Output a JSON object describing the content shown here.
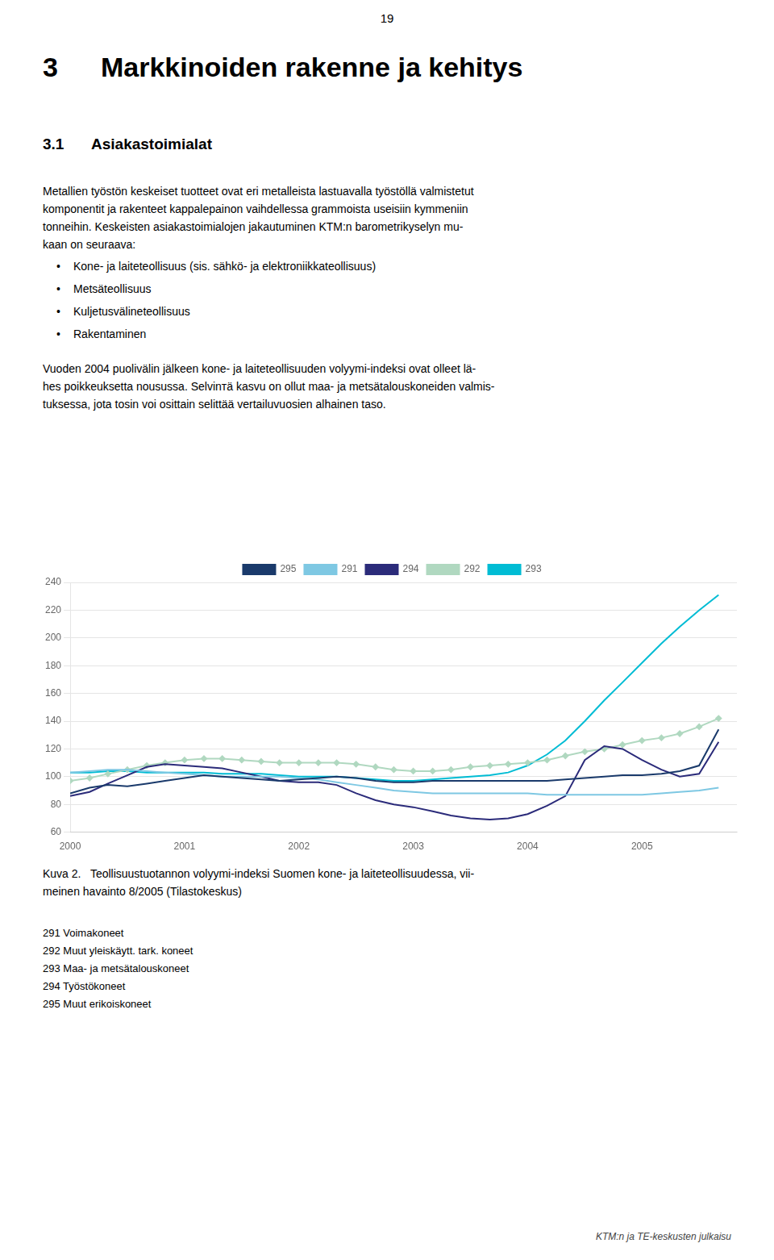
{
  "page_number": "19",
  "section_title_num": "3",
  "section_title_text": "Markkinoiden rakenne ja kehitys",
  "subsection_num": "3.1",
  "subsection_text": "Asiakastoimialat",
  "body1_lines": [
    "Metallien työstön keskeiset tuotteet ovat eri metalleista lastuavalla työstöllä valmistetut",
    "komponentit ja rakenteet kappalepainon vaihdellessa grammoista useisiin kymmeniin",
    "tonneihin. Keskeisten asiakastoimialojen jakautuminen KTM:n barometrikyselyn mu-",
    "kaan on seuraava:"
  ],
  "bullet_symbol": "•",
  "bullet_points": [
    "Kone- ja laiteteollisuus (sis. sähkö- ja elektroniikkateollisuus)",
    "Metsäteollisuus",
    "Kuljetusvälineteollisuus",
    "Rakentaminen"
  ],
  "body2_lines": [
    "Vuoden 2004 puolivälin jälkeen kone- ja laiteteollisuuden volyymi-indeksi ovat olleet lä-",
    "hes poikkeuksetta nousussa. Selvinтä kasvu on ollut maa- ja metsätalouskoneiden valmis-",
    "tuksessa, jota tosin voi osittain selittää vertailuvuosien alhainen taso."
  ],
  "caption_lines": [
    "Kuva 2.   Teollisuustuotannon volyymi-indeksi Suomen kone- ja laiteteollisuudessa, vii-",
    "meinen havainto 8/2005 (Tilastokeskus)"
  ],
  "footnotes": [
    "291 Voimakoneet",
    "292 Muut yleiskäytt. tark. koneet",
    "293 Maa- ja metsätalouskoneet",
    "294 Työstökoneet",
    "295 Muut erikoiskoneet"
  ],
  "footer_right": "KTM:n ja TE-keskusten julkaisu",
  "chart_data": {
    "type": "line",
    "x": [
      2000.0,
      2000.17,
      2000.33,
      2000.5,
      2000.67,
      2000.83,
      2001.0,
      2001.17,
      2001.33,
      2001.5,
      2001.67,
      2001.83,
      2002.0,
      2002.17,
      2002.33,
      2002.5,
      2002.67,
      2002.83,
      2003.0,
      2003.17,
      2003.33,
      2003.5,
      2003.67,
      2003.83,
      2004.0,
      2004.17,
      2004.33,
      2004.5,
      2004.67,
      2004.83,
      2005.0,
      2005.17,
      2005.33,
      2005.5,
      2005.67
    ],
    "xlim": [
      2000,
      2005.83
    ],
    "xticks": [
      2000,
      2001,
      2002,
      2003,
      2004,
      2005
    ],
    "ylim": [
      60,
      240
    ],
    "yticks": [
      60,
      80,
      100,
      120,
      140,
      160,
      180,
      200,
      220,
      240
    ],
    "grid": "y",
    "legend": "top",
    "series": [
      {
        "name": "295",
        "color": "#1a3a6b",
        "values": [
          88,
          92,
          94,
          93,
          95,
          97,
          99,
          101,
          100,
          99,
          98,
          97,
          98,
          99,
          100,
          99,
          97,
          96,
          96,
          97,
          97,
          97,
          97,
          97,
          97,
          97,
          98,
          99,
          100,
          101,
          101,
          102,
          104,
          108,
          134
        ]
      },
      {
        "name": "291",
        "color": "#7ec8e3",
        "values": [
          103,
          104,
          105,
          105,
          104,
          103,
          102,
          101,
          100,
          100,
          100,
          100,
          99,
          98,
          96,
          94,
          92,
          90,
          89,
          88,
          88,
          88,
          88,
          88,
          88,
          87,
          87,
          87,
          87,
          87,
          87,
          88,
          89,
          90,
          92
        ]
      },
      {
        "name": "294",
        "color": "#2b2b7a",
        "values": [
          86,
          89,
          95,
          101,
          107,
          109,
          108,
          107,
          106,
          103,
          100,
          97,
          96,
          96,
          94,
          88,
          83,
          80,
          78,
          75,
          72,
          70,
          69,
          70,
          73,
          79,
          86,
          112,
          122,
          120,
          112,
          105,
          100,
          102,
          125
        ]
      },
      {
        "name": "292",
        "color": "#b0d8c0",
        "marker": "diamond",
        "values": [
          97,
          99,
          102,
          105,
          108,
          110,
          112,
          113,
          113,
          112,
          111,
          110,
          110,
          110,
          110,
          109,
          107,
          105,
          104,
          104,
          105,
          107,
          108,
          109,
          110,
          112,
          115,
          118,
          120,
          123,
          126,
          128,
          131,
          136,
          142
        ]
      },
      {
        "name": "293",
        "color": "#00bcd4",
        "values": [
          103,
          103,
          104,
          104,
          103,
          103,
          103,
          103,
          102,
          102,
          102,
          101,
          100,
          100,
          100,
          99,
          98,
          97,
          97,
          98,
          99,
          100,
          101,
          103,
          108,
          116,
          126,
          140,
          155,
          168,
          182,
          196,
          208,
          220,
          231
        ]
      }
    ]
  }
}
